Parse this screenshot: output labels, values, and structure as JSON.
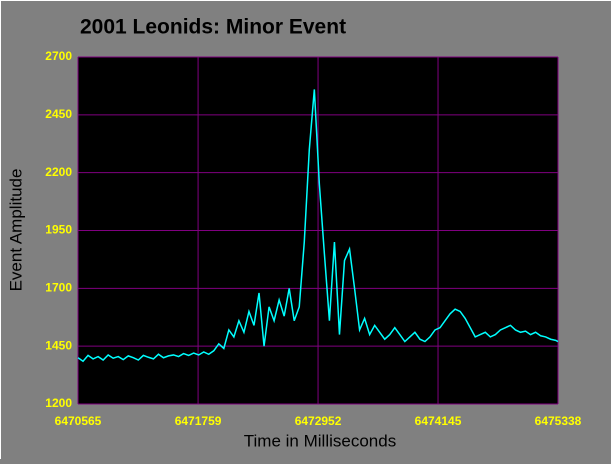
{
  "chart_data": {
    "type": "line",
    "title": "2001 Leonids: Minor Event",
    "xlabel": "Time in Milliseconds",
    "ylabel": "Event Amplitude",
    "x": [
      6470565,
      6470615,
      6470665,
      6470715,
      6470765,
      6470815,
      6470865,
      6470915,
      6470965,
      6471015,
      6471065,
      6471115,
      6471165,
      6471215,
      6471265,
      6471315,
      6471365,
      6471415,
      6471465,
      6471515,
      6471565,
      6471615,
      6471665,
      6471715,
      6471765,
      6471815,
      6471865,
      6471915,
      6471965,
      6472015,
      6472065,
      6472115,
      6472165,
      6472215,
      6472265,
      6472315,
      6472365,
      6472415,
      6472465,
      6472515,
      6472565,
      6472615,
      6472665,
      6472715,
      6472765,
      6472815,
      6472865,
      6472915,
      6472965,
      6473015,
      6473065,
      6473115,
      6473165,
      6473215,
      6473265,
      6473315,
      6473365,
      6473415,
      6473465,
      6473515,
      6473565,
      6473615,
      6473665,
      6473715,
      6473765,
      6473815,
      6473865,
      6473915,
      6473965,
      6474015,
      6474065,
      6474115,
      6474165,
      6474215,
      6474265,
      6474315,
      6474365,
      6474415,
      6474465,
      6474515,
      6474565,
      6474615,
      6474665,
      6474715,
      6474765,
      6474815,
      6474865,
      6474915,
      6474965,
      6475015,
      6475065,
      6475115,
      6475165,
      6475215,
      6475265,
      6475315,
      6475338
    ],
    "series": [
      {
        "name": "Event Amplitude",
        "color": "#00ffff",
        "values": [
          1400,
          1385,
          1410,
          1395,
          1405,
          1390,
          1412,
          1398,
          1405,
          1392,
          1408,
          1400,
          1390,
          1410,
          1402,
          1395,
          1415,
          1400,
          1408,
          1412,
          1405,
          1418,
          1410,
          1420,
          1412,
          1425,
          1415,
          1430,
          1460,
          1440,
          1520,
          1490,
          1560,
          1510,
          1600,
          1540,
          1680,
          1450,
          1620,
          1560,
          1650,
          1580,
          1700,
          1560,
          1620,
          1900,
          2300,
          2560,
          2150,
          1850,
          1560,
          1900,
          1500,
          1820,
          1870,
          1700,
          1520,
          1570,
          1500,
          1540,
          1510,
          1480,
          1500,
          1530,
          1500,
          1470,
          1490,
          1510,
          1480,
          1470,
          1490,
          1520,
          1530,
          1560,
          1590,
          1610,
          1600,
          1570,
          1530,
          1490,
          1500,
          1510,
          1490,
          1500,
          1520,
          1530,
          1540,
          1520,
          1510,
          1515,
          1500,
          1510,
          1495,
          1490,
          1480,
          1475,
          1470
        ]
      }
    ],
    "xlim": [
      6470565,
      6475338
    ],
    "xticks": [
      6470565,
      6471759,
      6472952,
      6474145,
      6475338
    ],
    "ylim": [
      1200,
      2700
    ],
    "yticks": [
      1200,
      1450,
      1700,
      1950,
      2200,
      2450,
      2700
    ],
    "grid": true
  }
}
